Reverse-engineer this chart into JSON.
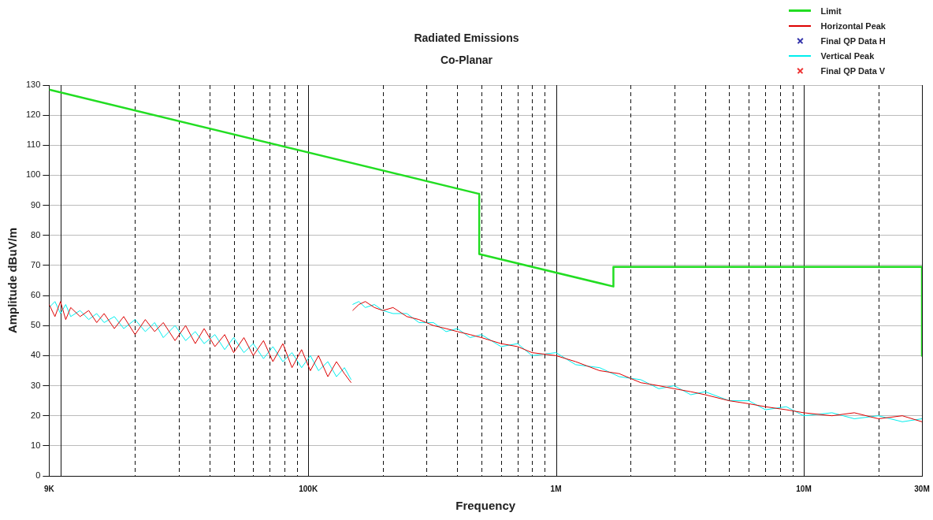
{
  "chart_data": {
    "type": "line",
    "title": "Radiated Emissions",
    "subtitle": "Co-Planar",
    "xlabel": "Frequency",
    "ylabel": "Amplitude dBuV/m",
    "log": "x",
    "grid": true,
    "legend": "top right",
    "xlim": [
      9000,
      30000000
    ],
    "ylim": [
      0,
      130
    ],
    "xticks": [
      {
        "value": 9000,
        "label": "9K"
      },
      {
        "value": 10000,
        "label": null
      },
      {
        "value": 20000,
        "label": null
      },
      {
        "value": 30000,
        "label": null
      },
      {
        "value": 40000,
        "label": null
      },
      {
        "value": 50000,
        "label": null
      },
      {
        "value": 60000,
        "label": null
      },
      {
        "value": 70000,
        "label": null
      },
      {
        "value": 80000,
        "label": null
      },
      {
        "value": 90000,
        "label": null
      },
      {
        "value": 100000,
        "label": "100K"
      },
      {
        "value": 200000,
        "label": null
      },
      {
        "value": 300000,
        "label": null
      },
      {
        "value": 400000,
        "label": null
      },
      {
        "value": 500000,
        "label": null
      },
      {
        "value": 600000,
        "label": null
      },
      {
        "value": 700000,
        "label": null
      },
      {
        "value": 800000,
        "label": null
      },
      {
        "value": 900000,
        "label": null
      },
      {
        "value": 1000000,
        "label": "1M"
      },
      {
        "value": 2000000,
        "label": null
      },
      {
        "value": 3000000,
        "label": null
      },
      {
        "value": 4000000,
        "label": null
      },
      {
        "value": 5000000,
        "label": null
      },
      {
        "value": 6000000,
        "label": null
      },
      {
        "value": 7000000,
        "label": null
      },
      {
        "value": 8000000,
        "label": null
      },
      {
        "value": 9000000,
        "label": null
      },
      {
        "value": 10000000,
        "label": "10M"
      },
      {
        "value": 20000000,
        "label": null
      },
      {
        "value": 30000000,
        "label": "30M"
      }
    ],
    "yticks": [
      0,
      10,
      20,
      30,
      40,
      50,
      60,
      70,
      80,
      90,
      100,
      110,
      120,
      130
    ],
    "series": [
      {
        "name": "Limit",
        "color": "#22dd22",
        "marker": "none",
        "x": [
          9000,
          490000,
          490000,
          1705000,
          1705000,
          30000000,
          30000000
        ],
        "values": [
          128.5,
          93.8,
          73.8,
          63,
          69.5,
          69.5,
          40
        ]
      },
      {
        "name": "Horizontal Peak",
        "color": "#dd0000",
        "marker": "none",
        "x": [
          9000,
          9500,
          10000,
          10500,
          11000,
          12000,
          13000,
          14000,
          15000,
          16500,
          18000,
          20000,
          22000,
          24000,
          26000,
          29000,
          32000,
          35000,
          38000,
          42000,
          46000,
          50000,
          55000,
          60000,
          66000,
          72000,
          79000,
          86000,
          94000,
          102000,
          110000,
          120000,
          130000,
          140000,
          149000,
          150000,
          151000,
          160000,
          170000,
          185000,
          200000,
          220000,
          250000,
          280000,
          320000,
          360000,
          400000,
          450000,
          500000,
          600000,
          700000,
          800000,
          1000000,
          1200000,
          1500000,
          1800000,
          2200000,
          2600000,
          3000000,
          3500000,
          4000000,
          5000000,
          6000000,
          7000000,
          8500000,
          10000000,
          13000000,
          16000000,
          20000000,
          25000000,
          30000000
        ],
        "values": [
          57,
          53,
          58,
          52,
          56,
          53,
          55,
          51,
          54,
          49,
          53,
          47,
          52,
          48,
          51,
          45,
          50,
          44,
          49,
          43,
          47,
          41,
          46,
          40,
          45,
          38,
          44,
          36,
          42,
          35,
          40,
          33,
          38,
          34,
          31,
          null,
          55,
          57,
          58,
          56,
          55,
          56,
          53,
          52,
          50,
          49,
          48,
          47,
          46,
          44,
          43,
          41,
          40,
          38,
          35,
          34,
          31,
          30,
          29,
          28,
          27,
          25,
          24,
          23,
          22,
          21,
          20,
          21,
          19,
          20,
          18
        ]
      },
      {
        "name": "Final QP Data H",
        "type": "scatter",
        "color": "#3333aa",
        "marker": "cross"
      },
      {
        "name": "Vertical Peak",
        "color": "#00eeee",
        "marker": "none",
        "x": [
          9000,
          9500,
          10000,
          10500,
          11000,
          12000,
          13000,
          14000,
          15000,
          16500,
          18000,
          20000,
          22000,
          24000,
          26000,
          29000,
          32000,
          35000,
          38000,
          42000,
          46000,
          50000,
          55000,
          60000,
          66000,
          72000,
          79000,
          86000,
          94000,
          102000,
          110000,
          120000,
          130000,
          140000,
          149000,
          150000,
          151000,
          160000,
          170000,
          185000,
          200000,
          220000,
          250000,
          280000,
          320000,
          360000,
          400000,
          450000,
          500000,
          600000,
          700000,
          800000,
          1000000,
          1200000,
          1500000,
          1800000,
          2200000,
          2600000,
          3000000,
          3500000,
          4000000,
          5000000,
          6000000,
          7000000,
          8500000,
          10000000,
          13000000,
          16000000,
          20000000,
          25000000,
          30000000
        ],
        "values": [
          56,
          58,
          54,
          57,
          53,
          55,
          52,
          54,
          51,
          53,
          49,
          52,
          48,
          51,
          46,
          50,
          45,
          48,
          44,
          47,
          42,
          46,
          41,
          44,
          39,
          43,
          38,
          41,
          36,
          40,
          35,
          38,
          33,
          36,
          32,
          null,
          57,
          58,
          56,
          57,
          55,
          54,
          54,
          51,
          51,
          48,
          49,
          46,
          47,
          43,
          44,
          40,
          41,
          37,
          36,
          33,
          32,
          29,
          30,
          27,
          28,
          25,
          25,
          22,
          23,
          20,
          21,
          19,
          20,
          18,
          19
        ]
      },
      {
        "name": "Final QP Data V",
        "type": "scatter",
        "color": "#ee3333",
        "marker": "cross"
      }
    ]
  }
}
